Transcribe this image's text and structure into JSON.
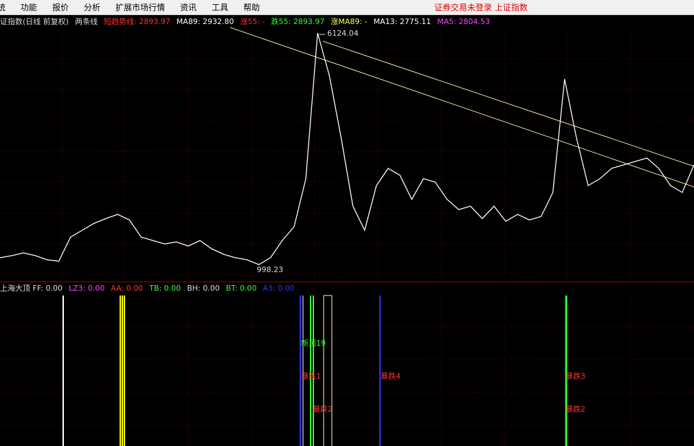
{
  "menu": {
    "items": [
      "统",
      "功能",
      "报价",
      "分析",
      "扩展市场行情",
      "资讯",
      "工具",
      "帮助"
    ],
    "status": "证券交易未登录  上证指数"
  },
  "header": {
    "items": [
      {
        "text": "证指数(日线 前复权)",
        "color": "#dddddd"
      },
      {
        "text": "两条线",
        "color": "#dddddd"
      },
      {
        "text": "短趋势线: 2893.97",
        "color": "#ff3333"
      },
      {
        "text": "MA89: 2932.80",
        "color": "#ffffff"
      },
      {
        "text": "涨55: -",
        "color": "#ff3333"
      },
      {
        "text": "跌55: 2893.97",
        "color": "#33ff33"
      },
      {
        "text": "涨MA89: -",
        "color": "#ffff66"
      },
      {
        "text": "MA13: 2775.11",
        "color": "#ffffff"
      },
      {
        "text": "MA5: 2804.53",
        "color": "#ff44ff"
      }
    ]
  },
  "price_panel": {
    "values": [
      1150,
      1196,
      1257,
      1196,
      1104,
      1074,
      1606,
      1759,
      1911,
      2017,
      2108,
      1987,
      1606,
      1530,
      1454,
      1500,
      1409,
      1530,
      1348,
      1226,
      1150,
      1104,
      998.23,
      1150,
      1530,
      1835,
      2900,
      6124.04,
      5181,
      3812,
      2291,
      1759,
      2748,
      3128,
      2976,
      2443,
      2900,
      2824,
      2443,
      2215,
      2291,
      2017,
      2291,
      1956,
      2108,
      1987,
      2063,
      2595,
      5105,
      3812,
      2748,
      2900,
      3128,
      3204,
      3280,
      3356,
      3128,
      2748,
      2595,
      3204
    ],
    "color": "#ffffff"
  },
  "indicator": {
    "items": [
      {
        "text": "上海大顶  FF: 0.00",
        "color": "#dddddd"
      },
      {
        "text": "LZ3: 0.00",
        "color": "#ff44ff"
      },
      {
        "text": "AA: 0.00",
        "color": "#ff3333"
      },
      {
        "text": "TB: 0.00",
        "color": "#33ff33"
      },
      {
        "text": "BH: 0.00",
        "color": "#dddddd"
      },
      {
        "text": "BT: 0.00",
        "color": "#33ff33"
      },
      {
        "text": "A3: 0.00",
        "color": "#3333ff"
      }
    ],
    "signals": [
      {
        "text": "新顶19",
        "color": "#33ff33"
      },
      {
        "text": "暴跌1",
        "color": "#ff3333"
      },
      {
        "text": "暴跌4",
        "color": "#ff3333"
      },
      {
        "text": "暴跌3",
        "color": "#ff3333"
      },
      {
        "text": "暴跌2",
        "color": "#ff3333"
      },
      {
        "text": "暴跌2",
        "color": "#ff3333"
      }
    ]
  }
}
